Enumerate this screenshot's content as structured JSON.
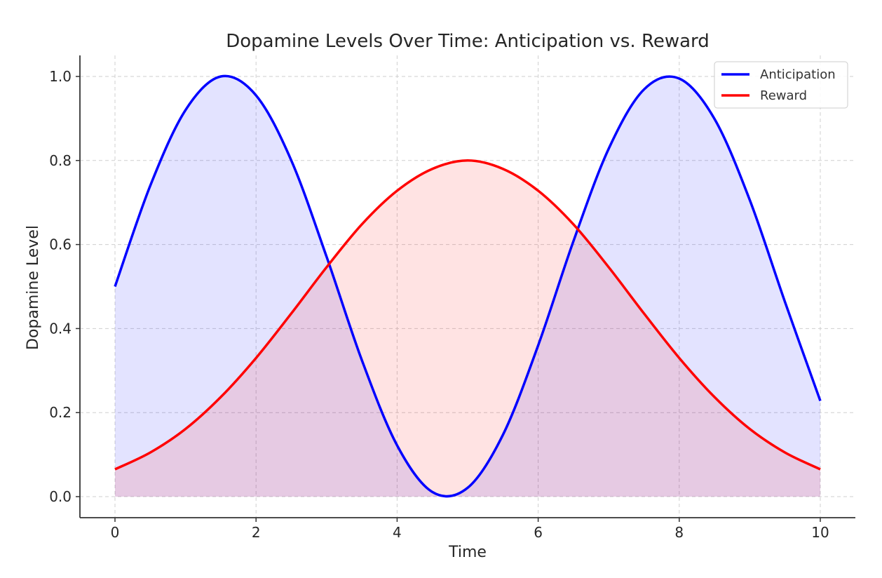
{
  "chart_data": {
    "type": "area",
    "title": "Dopamine Levels Over Time: Anticipation vs. Reward",
    "xlabel": "Time",
    "ylabel": "Dopamine Level",
    "xlim": [
      -0.5,
      10.5
    ],
    "ylim": [
      -0.05,
      1.05
    ],
    "x_ticks": [
      0,
      2,
      4,
      6,
      8,
      10
    ],
    "y_ticks": [
      0.0,
      0.2,
      0.4,
      0.6,
      0.8,
      1.0
    ],
    "x_tick_labels": [
      "0",
      "2",
      "4",
      "6",
      "8",
      "10"
    ],
    "y_tick_labels": [
      "0.0",
      "0.2",
      "0.4",
      "0.6",
      "0.8",
      "1.0"
    ],
    "grid": true,
    "legend_position": "top-right",
    "x": [
      0,
      0.5,
      1,
      1.5,
      2,
      2.5,
      3,
      3.5,
      4,
      4.5,
      5,
      5.5,
      6,
      6.5,
      7,
      7.5,
      8,
      8.5,
      9,
      9.5,
      10
    ],
    "series": [
      {
        "name": "Anticipation",
        "color": "#0000ff",
        "fill": "#e3e3fc",
        "values": [
          0.5,
          0.74,
          0.92,
          1.0,
          0.955,
          0.8,
          0.571,
          0.325,
          0.122,
          0.011,
          0.021,
          0.147,
          0.36,
          0.608,
          0.828,
          0.969,
          0.995,
          0.899,
          0.706,
          0.463,
          0.228
        ]
      },
      {
        "name": "Reward",
        "color": "#ff0000",
        "fill": "#fce1e3",
        "values": [
          0.065,
          0.105,
          0.161,
          0.237,
          0.33,
          0.436,
          0.546,
          0.648,
          0.728,
          0.78,
          0.8,
          0.78,
          0.728,
          0.648,
          0.546,
          0.436,
          0.33,
          0.237,
          0.161,
          0.105,
          0.065
        ]
      }
    ]
  }
}
